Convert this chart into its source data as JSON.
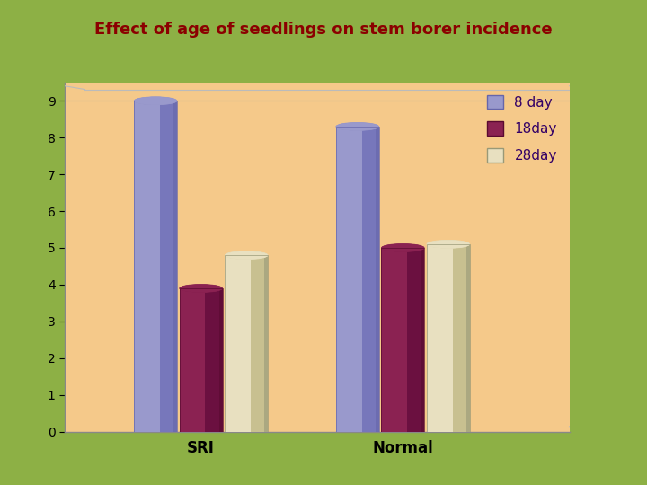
{
  "title": "Effect of age of seedlings on stem borer incidence",
  "title_color": "#8B0000",
  "background_outer": "#8DB045",
  "background_inner": "#F5C98A",
  "categories": [
    "SRI",
    "Normal"
  ],
  "series": [
    {
      "label": "8 day",
      "values": [
        9.0,
        8.3
      ],
      "color": "#9999CC",
      "edge_color": "#6666AA",
      "shade_color": "#7777BB"
    },
    {
      "label": "18day",
      "values": [
        3.9,
        5.0
      ],
      "color": "#8B2252",
      "edge_color": "#5A0A30",
      "shade_color": "#6B1040"
    },
    {
      "label": "28day",
      "values": [
        4.8,
        5.1
      ],
      "color": "#E8E0C0",
      "edge_color": "#999977",
      "shade_color": "#C8C090"
    }
  ],
  "ylim": [
    0,
    9.5
  ],
  "yticks": [
    0,
    1,
    2,
    3,
    4,
    5,
    6,
    7,
    8,
    9
  ],
  "group_centers": [
    0.27,
    0.67
  ],
  "bar_width": 0.085,
  "bar_gap": 0.005
}
